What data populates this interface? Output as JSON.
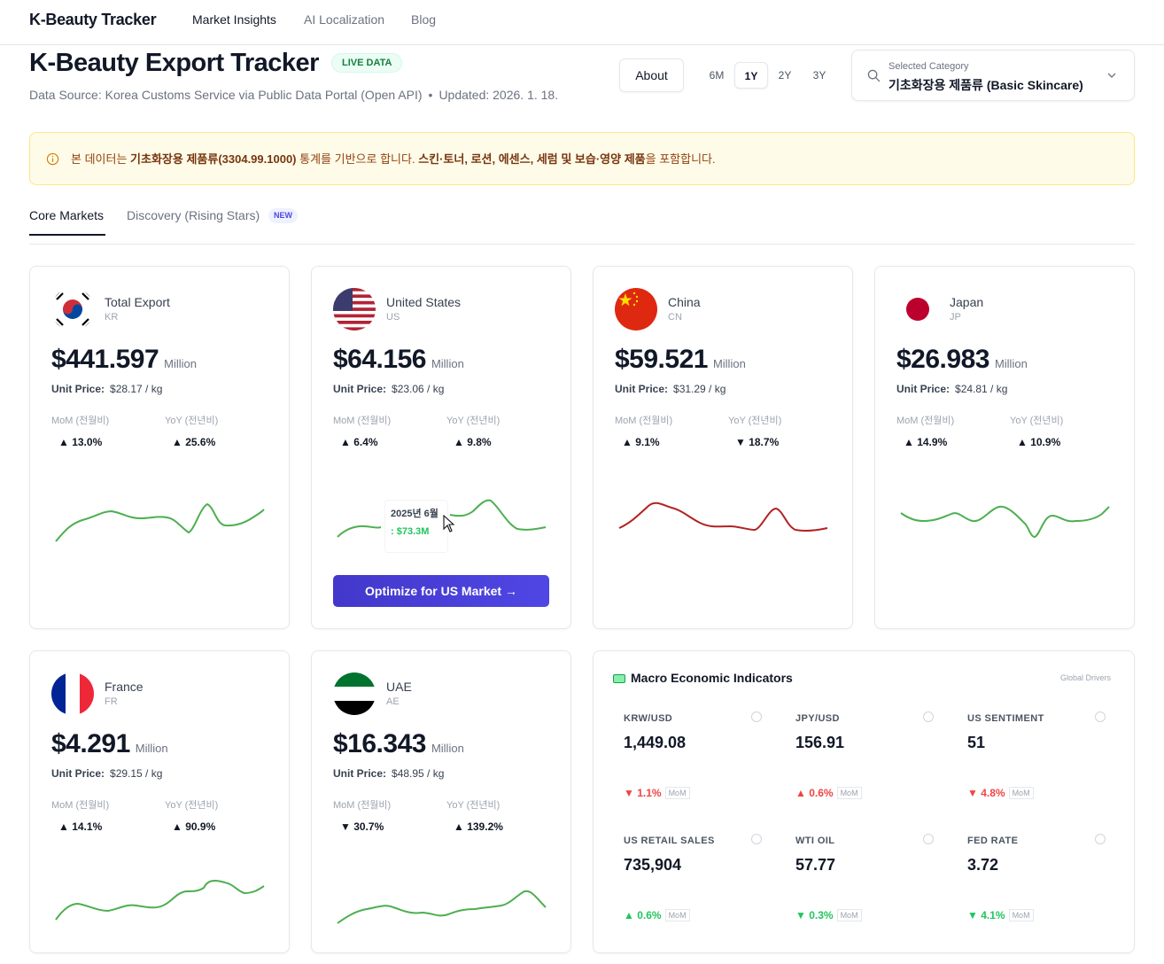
{
  "nav": {
    "brand": "K-Beauty Tracker",
    "links": [
      "Market Insights",
      "AI Localization",
      "Blog"
    ]
  },
  "header": {
    "title": "K-Beauty Export Tracker",
    "live_badge": "LIVE DATA",
    "source": "Data Source: Korea Customs Service via Public Data Portal (Open API)",
    "dot": "•",
    "updated": "Updated: 2026. 1. 18.",
    "about": "About",
    "ranges": [
      "6M",
      "1Y",
      "2Y",
      "3Y"
    ],
    "active_range": "1Y",
    "category_label": "Selected Category",
    "category_value": "기초화장용 제품류 (Basic Skincare)"
  },
  "notice": {
    "p1": "본 데이터는 ",
    "b1": "기초화장용 제품류(3304.99.1000)",
    "p2": " 통계를 기반으로 합니다. ",
    "b2": "스킨·토너, 로션, 에센스, 세럼 및 보습·영양 제품",
    "p3": "을 포함합니다."
  },
  "tabs": {
    "core": "Core Markets",
    "discovery": "Discovery (Rising Stars)",
    "new_badge": "NEW"
  },
  "labels": {
    "million": "Million",
    "unit_price": "Unit Price:",
    "mom": "MoM (전월비)",
    "yoy": "YoY (전년비)"
  },
  "cards": [
    {
      "name": "Total Export",
      "code": "KR",
      "amount": "$441.597",
      "unit_price": "$28.17 / kg",
      "mom": "▲ 13.0%",
      "yoy": "▲ 25.6%"
    },
    {
      "name": "United States",
      "code": "US",
      "amount": "$64.156",
      "unit_price": "$23.06 / kg",
      "mom": "▲ 6.4%",
      "yoy": "▲ 9.8%"
    },
    {
      "name": "China",
      "code": "CN",
      "amount": "$59.521",
      "unit_price": "$31.29 / kg",
      "mom": "▲ 9.1%",
      "yoy": "▼ 18.7%"
    },
    {
      "name": "Japan",
      "code": "JP",
      "amount": "$26.983",
      "unit_price": "$24.81 / kg",
      "mom": "▲ 14.9%",
      "yoy": "▲ 10.9%"
    },
    {
      "name": "France",
      "code": "FR",
      "amount": "$4.291",
      "unit_price": "$29.15 / kg",
      "mom": "▲ 14.1%",
      "yoy": "▲ 90.9%"
    },
    {
      "name": "UAE",
      "code": "AE",
      "amount": "$16.343",
      "unit_price": "$48.95 / kg",
      "mom": "▼ 30.7%",
      "yoy": "▲ 139.2%"
    }
  ],
  "tooltip": {
    "date": "2025년 6월",
    "value": ": $73.3M"
  },
  "optimize_btn": "Optimize for US Market  →",
  "colors": {
    "accent": "#4f46e5",
    "spark_green": "#4caf50",
    "spark_red": "#b22222"
  },
  "macro": {
    "title": "Macro Economic Indicators",
    "tag": "Global Drivers",
    "mom_tag": "MoM",
    "items": [
      {
        "label": "KRW/USD",
        "value": "1,449.08",
        "change": "▼ 1.1%"
      },
      {
        "label": "JPY/USD",
        "value": "156.91",
        "change": "▲ 0.6%"
      },
      {
        "label": "US SENTIMENT",
        "value": "51",
        "change": "▼ 4.8%"
      },
      {
        "label": "US RETAIL SALES",
        "value": "735,904",
        "change": "▲ 0.6%"
      },
      {
        "label": "WTI OIL",
        "value": "57.77",
        "change": "▼ 0.3%"
      },
      {
        "label": "FED RATE",
        "value": "3.72",
        "change": "▼ 4.1%"
      }
    ]
  }
}
